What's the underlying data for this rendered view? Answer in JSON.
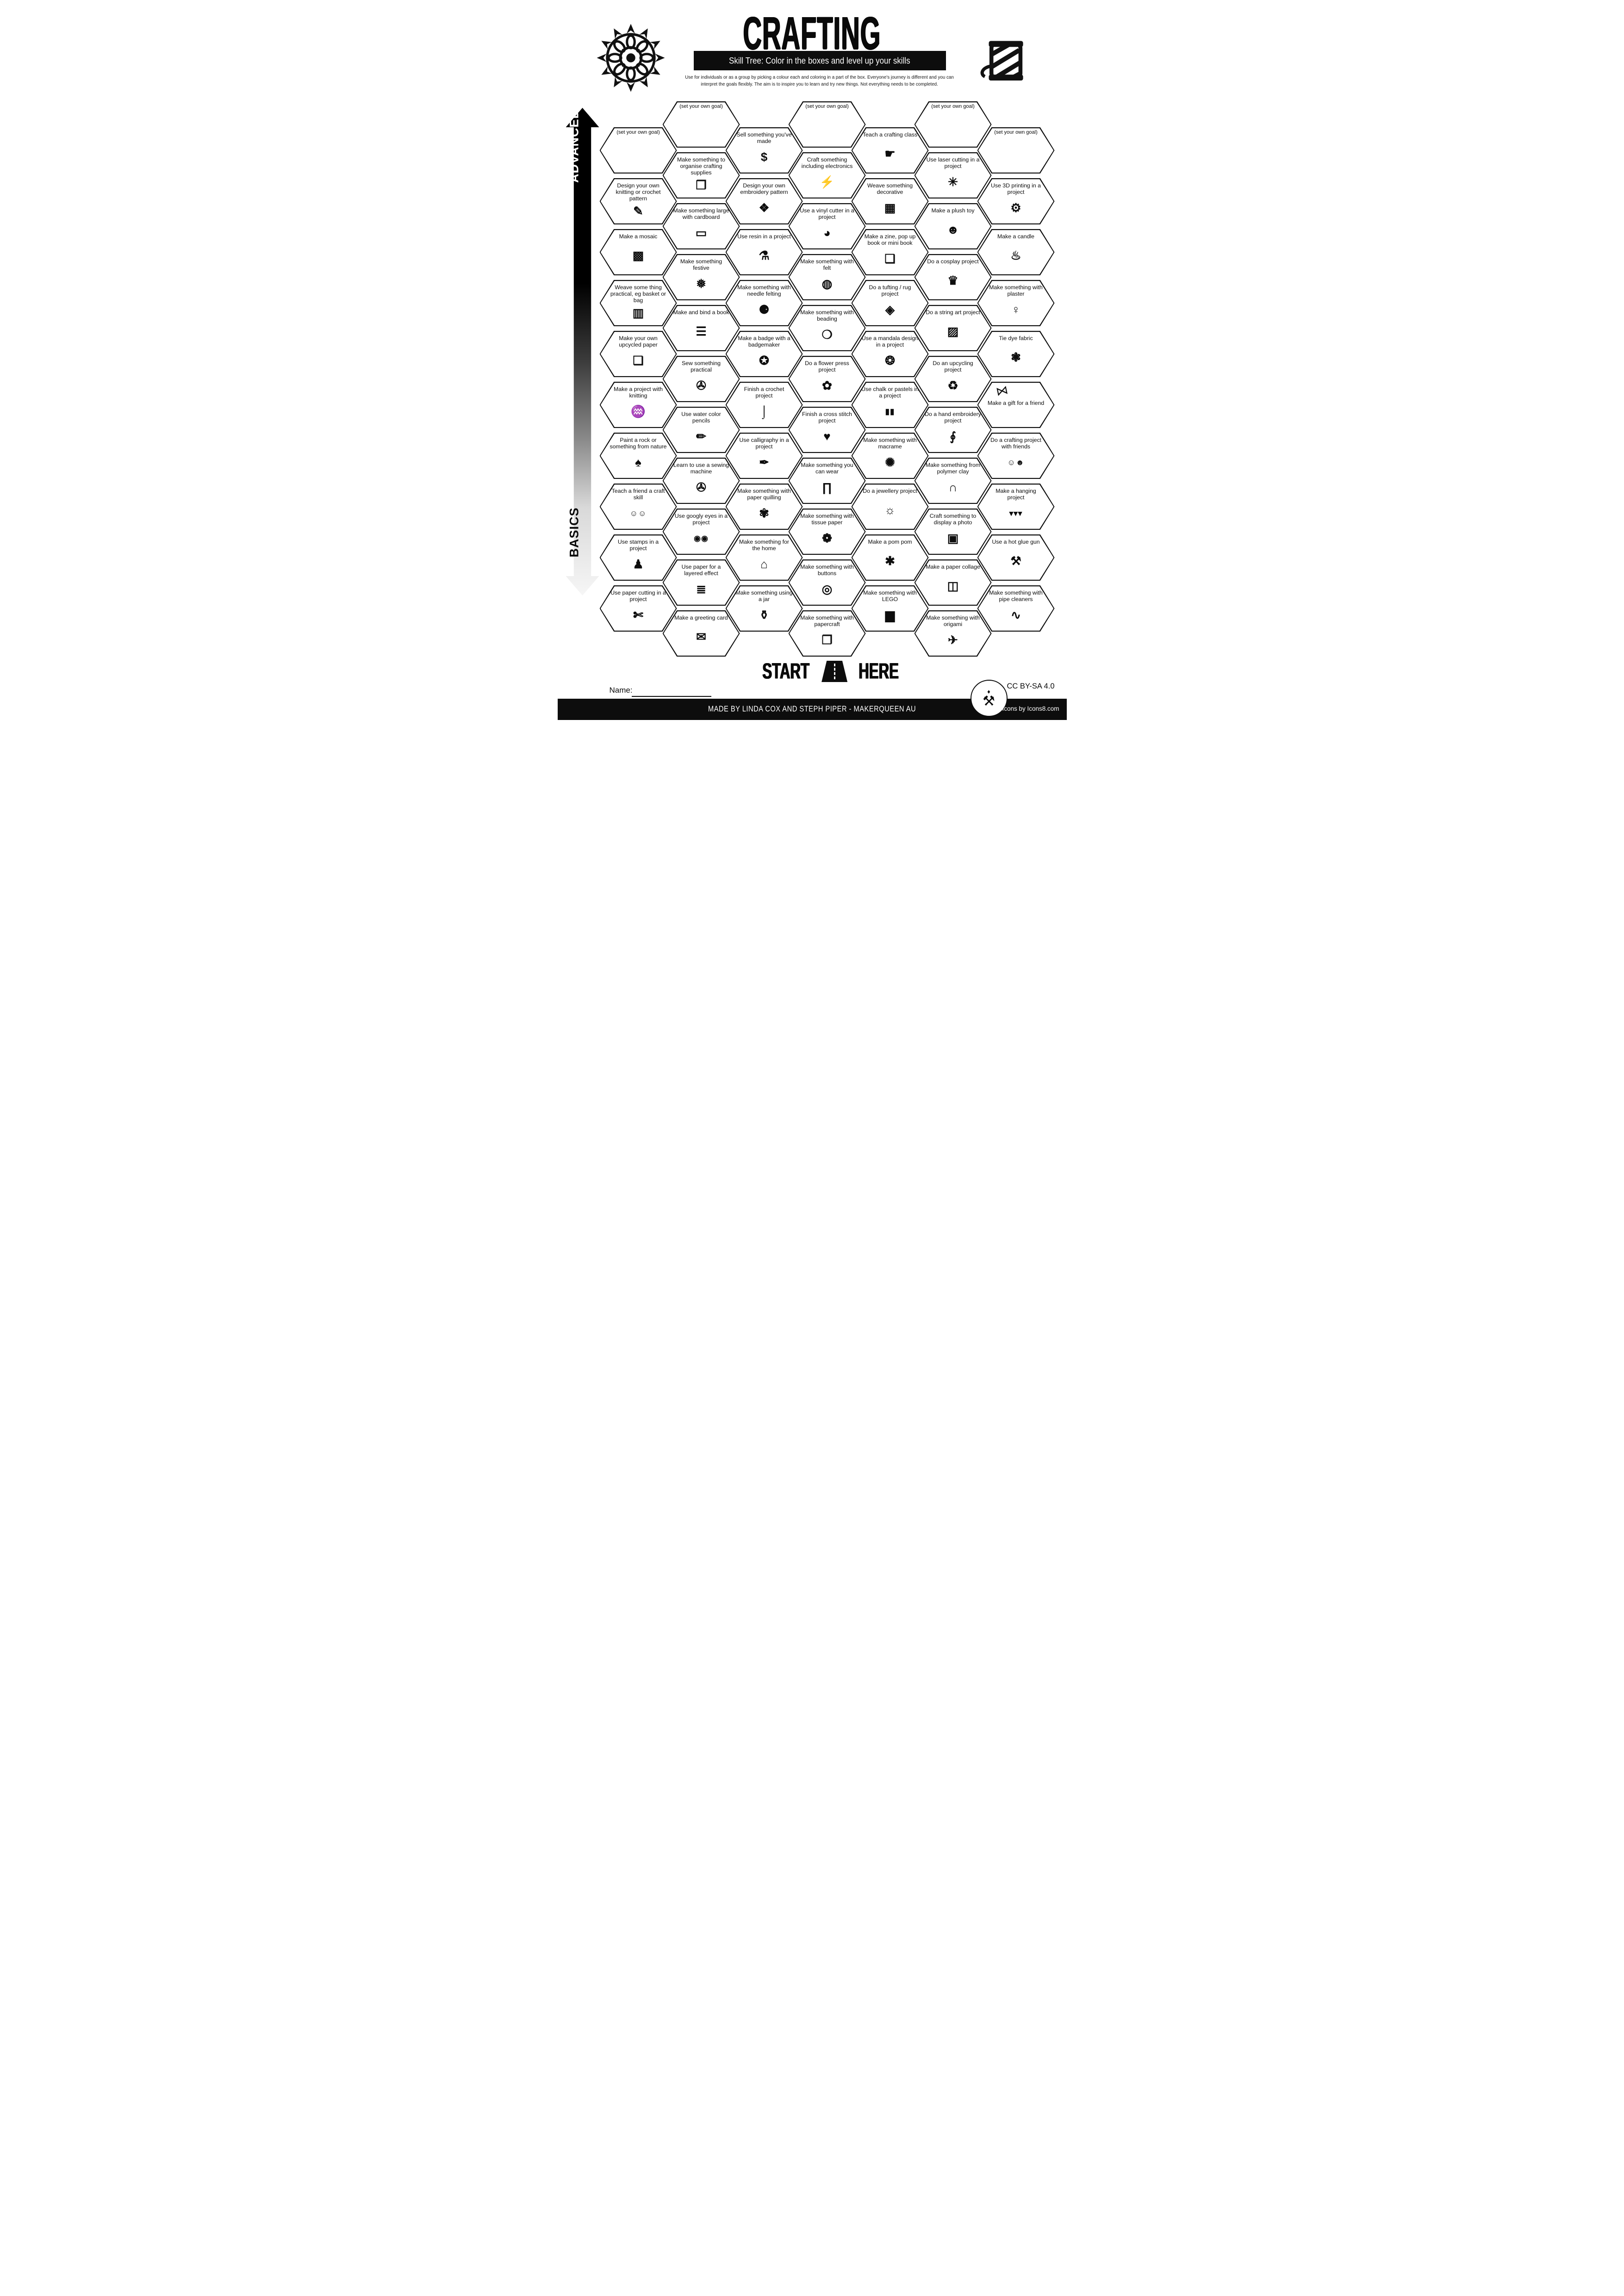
{
  "header": {
    "title": "CRAFTING",
    "subtitle": "Skill Tree:  Color in the boxes and level up your skills",
    "description_line1": "Use for individuals or as a group by picking a colour each and coloring in a part of the box.  Everyone's journey is different and you can",
    "description_line2": "interpret the goals flexibly.  The aim is to inspire you to learn and try new things. Not everything needs to be completed.",
    "left_icon": "mandala-icon",
    "right_icon": "yarn-spool-icon"
  },
  "axis": {
    "advanced_label": "ADVANCED",
    "basics_label": "BASICS"
  },
  "start": {
    "start_label": "START",
    "here_label": "HERE"
  },
  "name_label": "Name:",
  "footer": {
    "credit": "MADE BY LINDA COX  AND STEPH PIPER  -  MAKERQUEEN AU",
    "license": "CC BY-SA 4.0",
    "icons_credit": "Icons by Icons8.com"
  },
  "colors": {
    "ink": "#0d0d0d",
    "paper": "#ffffff"
  },
  "columns": [
    {
      "hexes": [
        {
          "label": "(set your own goal)",
          "goal": true
        },
        {
          "label": "Design your own knitting or crochet pattern",
          "icon": "knitting-pattern-icon",
          "glyph": "✎"
        },
        {
          "label": "Make a mosaic",
          "icon": "mosaic-icon",
          "glyph": "▩"
        },
        {
          "label": "Weave some thing practical, eg basket or bag",
          "icon": "basket-bag-icon",
          "glyph": "▥"
        },
        {
          "label": "Make your own upcycled paper",
          "icon": "paper-scroll-icon",
          "glyph": "❏"
        },
        {
          "label": "Make a project with knitting",
          "icon": "knitting-icon",
          "glyph": "♒"
        },
        {
          "label": "Paint a rock or something from nature",
          "icon": "leaf-icon",
          "glyph": "♠"
        },
        {
          "label": "Teach a friend a craft skill",
          "icon": "friends-teaching-icon",
          "glyph": "☺☺",
          "small": true
        },
        {
          "label": "Use stamps in a project",
          "icon": "stamp-icon",
          "glyph": "♟"
        },
        {
          "label": "Use paper cutting in a project",
          "icon": "craft-knife-icon",
          "glyph": "✄"
        }
      ]
    },
    {
      "hexes": [
        {
          "label": "(set your own goal)",
          "goal": true
        },
        {
          "label": "Make something to organise crafting supplies",
          "icon": "organiser-boxes-icon",
          "glyph": "❒"
        },
        {
          "label": "Make something large with cardboard",
          "icon": "cardboard-icon",
          "glyph": "▭"
        },
        {
          "label": "Make something festive",
          "icon": "ornament-icon",
          "glyph": "❅"
        },
        {
          "label": "Make and bind a book",
          "icon": "book-icon",
          "glyph": "☰"
        },
        {
          "label": "Sew something practical",
          "icon": "sewing-machine-icon",
          "glyph": "✇"
        },
        {
          "label": "Use water color pencils",
          "icon": "watercolor-pencil-icon",
          "glyph": "✏"
        },
        {
          "label": "Learn to use a sewing machine",
          "icon": "sewing-machine-icon",
          "glyph": "✇"
        },
        {
          "label": "Use googly eyes in a project",
          "icon": "googly-eyes-icon",
          "glyph": "◉◉",
          "small": true
        },
        {
          "label": "Use paper for a layered effect",
          "icon": "layered-paper-icon",
          "glyph": "≣"
        },
        {
          "label": "Make a greeting card",
          "icon": "greeting-card-icon",
          "glyph": "✉"
        }
      ]
    },
    {
      "hexes": [
        {
          "label": "Sell something you've made",
          "icon": "money-bag-icon",
          "glyph": "$"
        },
        {
          "label": "Design your own embroidery pattern",
          "icon": "embroidery-pattern-icon",
          "glyph": "❖"
        },
        {
          "label": "Use resin in a project",
          "icon": "resin-pour-icon",
          "glyph": "⚗"
        },
        {
          "label": "Make something with needle felting",
          "icon": "felted-bear-icon",
          "glyph": "⚈"
        },
        {
          "label": "Make a badge with a badgemaker",
          "icon": "badge-icon",
          "glyph": "✪"
        },
        {
          "label": "Finish a crochet project",
          "icon": "crochet-hook-icon",
          "glyph": "⌡"
        },
        {
          "label": "Use calligraphy in a project",
          "icon": "calligraphy-pen-icon",
          "glyph": "✒"
        },
        {
          "label": "Make something with paper quilling",
          "icon": "quilling-spiral-icon",
          "glyph": "✾"
        },
        {
          "label": "Make something for the home",
          "icon": "house-icon",
          "glyph": "⌂"
        },
        {
          "label": "Make something using a jar",
          "icon": "jar-icon",
          "glyph": "⚱"
        }
      ]
    },
    {
      "hexes": [
        {
          "label": "(set your own goal)",
          "goal": true
        },
        {
          "label": "Craft something including electronics",
          "icon": "led-lightning-icon",
          "glyph": "⚡"
        },
        {
          "label": "Use a vinyl cutter in a project",
          "icon": "vinyl-sticker-icon",
          "glyph": "◕"
        },
        {
          "label": "Make something with felt",
          "icon": "felt-roll-icon",
          "glyph": "◍"
        },
        {
          "label": "Make something with beading",
          "icon": "bead-necklace-icon",
          "glyph": "❍"
        },
        {
          "label": "Do a flower press project",
          "icon": "flower-icon",
          "glyph": "✿"
        },
        {
          "label": "Finish a cross stitch project",
          "icon": "stitched-heart-icon",
          "glyph": "♥"
        },
        {
          "label": "Make something you can wear",
          "icon": "trousers-icon",
          "glyph": "∏"
        },
        {
          "label": "Make something with tissue paper",
          "icon": "tissue-flower-icon",
          "glyph": "❁"
        },
        {
          "label": "Make something with buttons",
          "icon": "button-icon",
          "glyph": "◎"
        },
        {
          "label": "Make something with papercraft",
          "icon": "papercraft-icon",
          "glyph": "❐"
        }
      ]
    },
    {
      "hexes": [
        {
          "label": "Teach a crafting class",
          "icon": "teacher-board-icon",
          "glyph": "☛"
        },
        {
          "label": "Weave something decorative",
          "icon": "weaving-grid-icon",
          "glyph": "▦"
        },
        {
          "label": "Make a zine, pop up book or mini book",
          "icon": "zine-book-icon",
          "glyph": "❑"
        },
        {
          "label": "Do a tufting / rug project",
          "icon": "rug-icon",
          "glyph": "◈"
        },
        {
          "label": "Use a mandala design in a project",
          "icon": "mandala-design-icon",
          "glyph": "❂"
        },
        {
          "label": "Use chalk or pastels in a project",
          "icon": "chalk-pastels-icon",
          "glyph": "▮▮",
          "small": true
        },
        {
          "label": "Make something with macrame",
          "icon": "dreamcatcher-icon",
          "glyph": "✺"
        },
        {
          "label": "Do a jewellery project",
          "icon": "necklace-icon",
          "glyph": "☼"
        },
        {
          "label": "Make a pom pom",
          "icon": "pom-pom-icon",
          "glyph": "✱"
        },
        {
          "label": "Make something with LEGO",
          "icon": "lego-brick-icon",
          "glyph": "▆"
        }
      ]
    },
    {
      "hexes": [
        {
          "label": "(set your own goal)",
          "goal": true
        },
        {
          "label": "Use laser cutting in a project",
          "icon": "laser-beam-icon",
          "glyph": "✳"
        },
        {
          "label": "Make a plush toy",
          "icon": "teddy-bear-icon",
          "glyph": "☻"
        },
        {
          "label": "Do a cosplay project",
          "icon": "dress-form-icon",
          "glyph": "♛"
        },
        {
          "label": "Do a string art project",
          "icon": "thread-spool-icon",
          "glyph": "▨"
        },
        {
          "label": "Do an upcycling project",
          "icon": "recycle-icon",
          "glyph": "♻"
        },
        {
          "label": "Do a hand embroidery project",
          "icon": "needle-thread-icon",
          "glyph": "∮"
        },
        {
          "label": "Make something from polymer clay",
          "icon": "clay-rainbow-icon",
          "glyph": "∩"
        },
        {
          "label": "Craft something to display a photo",
          "icon": "photo-frame-icon",
          "glyph": "▣"
        },
        {
          "label": "Make a paper collage",
          "icon": "collage-icon",
          "glyph": "◫"
        },
        {
          "label": "Make something with origami",
          "icon": "origami-crane-icon",
          "glyph": "✈"
        }
      ]
    },
    {
      "hexes": [
        {
          "label": "(set your own goal)",
          "goal": true
        },
        {
          "label": "Use 3D printing in a project",
          "icon": "printer-3d-icon",
          "glyph": "⚙"
        },
        {
          "label": "Make a candle",
          "icon": "candle-icon",
          "glyph": "♨"
        },
        {
          "label": "Make something with plaster",
          "icon": "plaster-statue-icon",
          "glyph": "♀"
        },
        {
          "label": "Tie dye fabric",
          "icon": "tie-dye-swirl-icon",
          "glyph": "❃"
        },
        {
          "label": "Make a gift for a friend",
          "icon": "gift-bow-icon",
          "glyph": "⋈",
          "icon_top": true
        },
        {
          "label": "Do a crafting project with friends",
          "icon": "friends-crafting-icon",
          "glyph": "☺☻",
          "small": true
        },
        {
          "label": "Make a hanging project",
          "icon": "bunting-icon",
          "glyph": "▾▾▾",
          "small": true
        },
        {
          "label": "Use a hot glue gun",
          "icon": "glue-gun-icon",
          "glyph": "⚒"
        },
        {
          "label": "Make something with pipe cleaners",
          "icon": "pipe-cleaner-icon",
          "glyph": "∿"
        }
      ]
    }
  ]
}
